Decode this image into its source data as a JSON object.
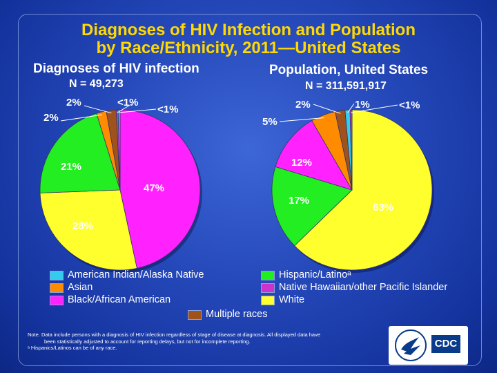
{
  "title_line1": "Diagnoses of HIV Infection and Population",
  "title_line2": "by Race/Ethnicity, 2011—United States",
  "chart_data": [
    {
      "type": "pie",
      "title": "Diagnoses of HIV infection",
      "n_label": "N = 49,273",
      "slices": [
        {
          "category": "Black/African American",
          "value": 47,
          "label": "47%",
          "color": "#ff22ff"
        },
        {
          "category": "White",
          "value": 28,
          "label": "28%",
          "color": "#ffff2e"
        },
        {
          "category": "Hispanic/Latino",
          "value": 21,
          "label": "21%",
          "color": "#22ee22"
        },
        {
          "category": "Asian",
          "value": 2,
          "label": "2%",
          "color": "#ff8c00"
        },
        {
          "category": "Multiple races",
          "value": 2,
          "label": "2%",
          "color": "#a0521d"
        },
        {
          "category": "Native Hawaiian/other Pacific Islander",
          "value": 0.4,
          "label": "<1%",
          "color": "#cc33cc"
        },
        {
          "category": "American Indian/Alaska Native",
          "value": 0.4,
          "label": "<1%",
          "color": "#33ccee"
        }
      ]
    },
    {
      "type": "pie",
      "title": "Population, United States",
      "n_label": "N = 311,591,917",
      "slices": [
        {
          "category": "White",
          "value": 63,
          "label": "63%",
          "color": "#ffff2e"
        },
        {
          "category": "Hispanic/Latino",
          "value": 17,
          "label": "17%",
          "color": "#22ee22"
        },
        {
          "category": "Black/African American",
          "value": 12,
          "label": "12%",
          "color": "#ff22ff"
        },
        {
          "category": "Asian",
          "value": 5,
          "label": "5%",
          "color": "#ff8c00"
        },
        {
          "category": "Multiple races",
          "value": 2,
          "label": "2%",
          "color": "#a0521d"
        },
        {
          "category": "American Indian/Alaska Native",
          "value": 1,
          "label": "1%",
          "color": "#33ccee"
        },
        {
          "category": "Native Hawaiian/other Pacific Islander",
          "value": 0.4,
          "label": "<1%",
          "color": "#cc33cc"
        }
      ]
    }
  ],
  "legend": [
    {
      "label": "American Indian/Alaska Native",
      "color": "#33ccee"
    },
    {
      "label": "Asian",
      "color": "#ff8c00"
    },
    {
      "label": "Black/African American",
      "color": "#ff22ff"
    },
    {
      "label": "Hispanic/Latinoᵃ",
      "color": "#22ee22"
    },
    {
      "label": "Native Hawaiian/other Pacific Islander",
      "color": "#cc33cc"
    },
    {
      "label": "White",
      "color": "#ffff2e"
    },
    {
      "label": "Multiple races",
      "color": "#a0521d"
    }
  ],
  "note_line1": "Note. Data include persons with a diagnosis of HIV infection regardless of stage of disease at diagnosis. All displayed data have",
  "note_line2": "been statistically adjusted to account for reporting delays, but not for incomplete reporting.",
  "note_line3": "ᵃ Hispanics/Latinos can be of any race.",
  "logo_text": "CDC"
}
